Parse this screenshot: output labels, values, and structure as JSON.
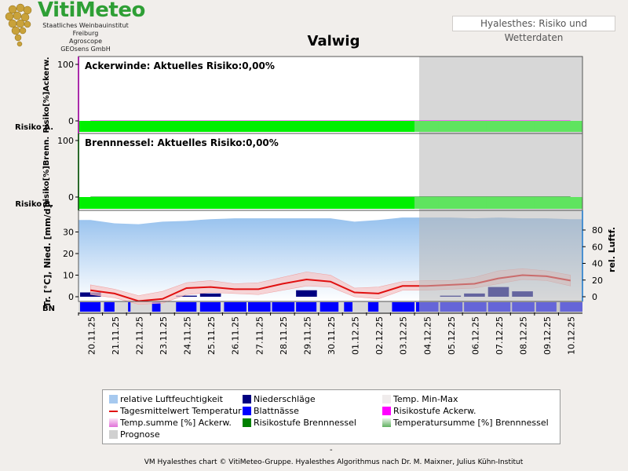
{
  "header": {
    "logo": "VitiMeteo",
    "logo_lines": [
      "Staatliches Weinbauinstitut Freiburg",
      "Agroscope",
      "GEOsens GmbH"
    ],
    "badge": "Hyalesthes: Risiko und Wetterdaten"
  },
  "footer": {
    "dash": "-",
    "credit": "VM Hyalesthes chart © VitiMeteo-Gruppe. Hyalesthes Algorithmus nach Dr. M. Maixner, Julius Kühn-Institut"
  },
  "colors": {
    "risk_green": "#00f000",
    "prognose_grey": "#d0d0d0",
    "humidity_blue": "#a6c9ef",
    "temp_red": "#e01010",
    "tempband_pink": "#f6c4c4",
    "precip_navy": "#000080",
    "leaf_blue": "#0000ff",
    "magenta": "#ff00ff",
    "dark_green": "#008000"
  },
  "chart_data": {
    "type": "line",
    "title": "Valwig",
    "x": [
      "20.11.25",
      "21.11.25",
      "22.11.25",
      "23.11.25",
      "24.11.25",
      "25.11.25",
      "26.11.25",
      "27.11.25",
      "28.11.25",
      "29.11.25",
      "30.11.25",
      "01.12.25",
      "02.12.25",
      "03.12.25",
      "04.12.25",
      "05.12.25",
      "06.12.25",
      "07.12.25",
      "08.12.25",
      "09.12.25",
      "10.12.25"
    ],
    "prognose_from": "04.12.25",
    "panels": [
      {
        "id": "ackerwinde",
        "annotation": "Ackerwinde: Aktuelles Risiko:0,00%",
        "ylabel": "Risiko[%]Ackerw.",
        "risk_label": "Risiko A.",
        "ylim": [
          0,
          100
        ],
        "yticks": [
          0,
          100
        ],
        "series": [
          {
            "name": "Temp.summe [%] Ackerw.",
            "values": [
              0,
              0,
              0,
              0,
              0,
              0,
              0,
              0,
              0,
              0,
              0,
              0,
              0,
              0,
              0,
              0,
              0,
              0,
              0,
              0,
              0
            ]
          }
        ],
        "risk_level": "green"
      },
      {
        "id": "brennnessel",
        "annotation": "Brennnessel: Aktuelles Risiko:0,00%",
        "ylabel": "Risiko[%]Brenn.",
        "risk_label": "Risiko B.",
        "ylim": [
          0,
          100
        ],
        "yticks": [
          0,
          100
        ],
        "series": [
          {
            "name": "Temperatursumme [%] Brennnessel",
            "values": [
              0,
              0,
              0,
              0,
              0,
              0,
              0,
              0,
              0,
              0,
              0,
              0,
              0,
              0,
              0,
              0,
              0,
              0,
              0,
              0,
              0
            ]
          }
        ],
        "risk_level": "green"
      },
      {
        "id": "weather",
        "ylabel_left": "Tr. [°C], Nied. [mm/d]",
        "ylabel_right": "rel. Luftf.",
        "leaf_label": "BN",
        "ylim_left": [
          -2,
          40
        ],
        "yticks_left": [
          0,
          10,
          20,
          30
        ],
        "ylim_right": [
          -5,
          100
        ],
        "yticks_right": [
          0,
          20,
          40,
          60,
          80
        ],
        "series": [
          {
            "name": "Tagesmittelwert Temperatur",
            "values": [
              3,
              1.5,
              -2,
              -1,
              4,
              4.5,
              3.5,
              3.5,
              6,
              8,
              7,
              2,
              1.5,
              5,
              5,
              5.5,
              6,
              8.5,
              10,
              9.5,
              7.5
            ]
          },
          {
            "name": "Temp. Min-Max min",
            "values": [
              1,
              -0.5,
              -3.5,
              -3,
              1,
              2,
              1.5,
              1,
              3,
              5,
              4.5,
              0,
              -1,
              3,
              3,
              3.5,
              4,
              6,
              8,
              7.5,
              5
            ]
          },
          {
            "name": "Temp. Min-Max max",
            "values": [
              5.5,
              3.5,
              0.5,
              2.5,
              6.5,
              7.5,
              6,
              6.5,
              9,
              11.5,
              10,
              4,
              4.5,
              7,
              7.5,
              7.5,
              9,
              12,
              13,
              12,
              10
            ]
          },
          {
            "name": "relative Luftfeuchtigkeit",
            "values": [
              92,
              88,
              87,
              90,
              91,
              93,
              94,
              94,
              94,
              94,
              94,
              90,
              92,
              95,
              95,
              95,
              94,
              95,
              94,
              94,
              93
            ]
          },
          {
            "name": "Niederschläge",
            "values": [
              2,
              0,
              0,
              0,
              0.5,
              1.5,
              0,
              0,
              0,
              3,
              0,
              0,
              0,
              0,
              0,
              0.5,
              1.5,
              4.5,
              2.5,
              0,
              0
            ]
          }
        ],
        "leaf_wetness_hours": [
          11,
          6,
          2,
          5,
          11,
          11,
          12,
          12,
          12,
          11,
          10,
          5,
          6,
          12,
          12,
          12,
          12,
          12,
          12,
          11,
          12
        ]
      }
    ],
    "legend": [
      {
        "label": "relative Luftfeuchtigkeit",
        "symbol": "humidity"
      },
      {
        "label": "Tagesmittelwert Temperatur",
        "symbol": "templine"
      },
      {
        "label": "Temp.summe [%] Ackerw.",
        "symbol": "pink-fade"
      },
      {
        "label": "Prognose",
        "symbol": "prognose"
      },
      {
        "label": "Niederschläge",
        "symbol": "precip"
      },
      {
        "label": "Blattnässe",
        "symbol": "leaf"
      },
      {
        "label": "Risikostufe Brennnessel",
        "symbol": "dark-green"
      },
      {
        "label": "Temp. Min-Max",
        "symbol": "minmax"
      },
      {
        "label": "Risikostufe Ackerw.",
        "symbol": "magenta"
      },
      {
        "label": "Temperatursumme [%] Brennnessel",
        "symbol": "green-fade"
      }
    ]
  }
}
